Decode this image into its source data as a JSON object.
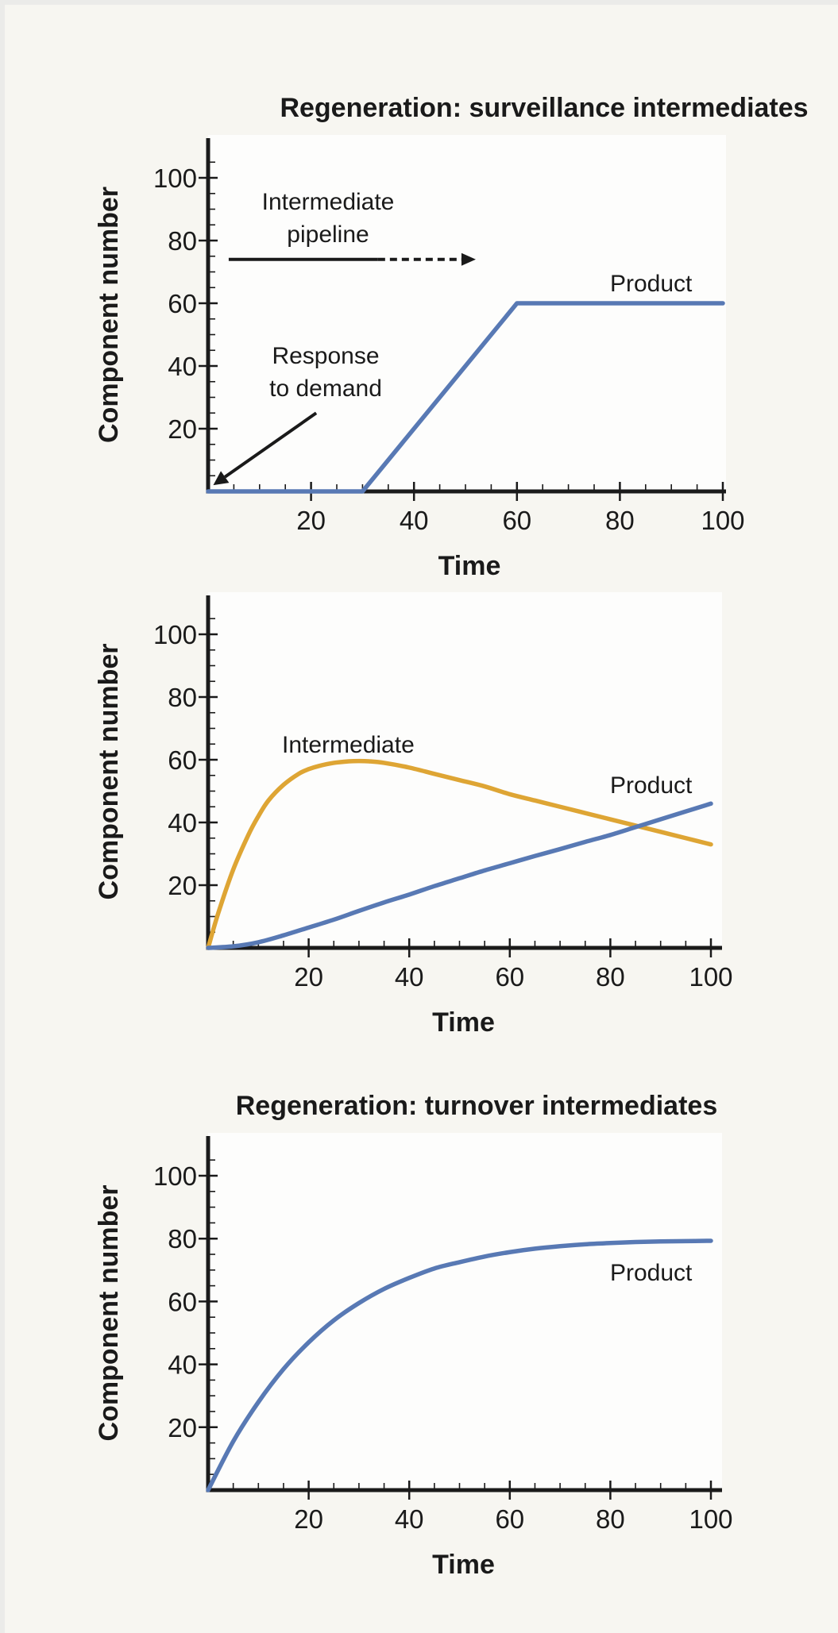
{
  "colors": {
    "product": "#5879b4",
    "intermediate": "#dea534"
  },
  "chart_data": [
    {
      "type": "line",
      "title": "Regeneration: surveillance intermediates",
      "xlabel": "Time",
      "ylabel": "Component number",
      "xlim": [
        0,
        100
      ],
      "ylim": [
        0,
        100
      ],
      "xticks": [
        20,
        40,
        60,
        80,
        100
      ],
      "yticks": [
        20,
        40,
        60,
        80,
        100
      ],
      "series": [
        {
          "name": "Product",
          "color_key": "product",
          "x": [
            0,
            30,
            60,
            100
          ],
          "y": [
            0,
            0,
            60,
            60
          ]
        }
      ],
      "annotations": {
        "pipeline_lines": [
          "Intermediate",
          "pipeline"
        ],
        "pipeline_arrow": {
          "solid_x": [
            4,
            33
          ],
          "dashed_x": [
            33,
            52
          ],
          "y": 74
        },
        "demand_lines": [
          "Response",
          "to demand"
        ],
        "demand_arrow": {
          "from": [
            21,
            25
          ],
          "to": [
            1,
            2
          ]
        }
      }
    },
    {
      "type": "line",
      "title": "",
      "xlabel": "Time",
      "ylabel": "Component number",
      "xlim": [
        0,
        100
      ],
      "ylim": [
        0,
        100
      ],
      "xticks": [
        20,
        40,
        60,
        80,
        100
      ],
      "yticks": [
        20,
        40,
        60,
        80,
        100
      ],
      "series": [
        {
          "name": "Intermediate",
          "color_key": "intermediate",
          "x": [
            0,
            2,
            5,
            8,
            10,
            12,
            15,
            18,
            20,
            22,
            25,
            28,
            30,
            32,
            35,
            40,
            45,
            50,
            55,
            60,
            65,
            70,
            75,
            80,
            85,
            90,
            95,
            100
          ],
          "y": [
            0,
            11,
            25,
            36,
            42,
            47,
            52,
            55.5,
            57,
            58,
            59,
            59.5,
            59.6,
            59.5,
            59,
            57.5,
            55.5,
            53.5,
            51.5,
            49,
            47,
            45,
            43,
            41,
            39,
            37,
            35,
            33
          ]
        },
        {
          "name": "Product",
          "color_key": "product",
          "x": [
            0,
            5,
            10,
            15,
            20,
            25,
            30,
            35,
            40,
            45,
            50,
            55,
            60,
            65,
            70,
            75,
            80,
            85,
            90,
            95,
            100
          ],
          "y": [
            0,
            0.5,
            1.8,
            4,
            6.5,
            9,
            11.8,
            14.5,
            17,
            19.7,
            22.2,
            24.7,
            27,
            29.3,
            31.5,
            33.8,
            36,
            38.5,
            41,
            43.5,
            46
          ]
        }
      ]
    },
    {
      "type": "line",
      "title": "Regeneration: turnover intermediates",
      "xlabel": "Time",
      "ylabel": "Component number",
      "xlim": [
        0,
        100
      ],
      "ylim": [
        0,
        100
      ],
      "xticks": [
        20,
        40,
        60,
        80,
        100
      ],
      "yticks": [
        20,
        40,
        60,
        80,
        100
      ],
      "series": [
        {
          "name": "Product",
          "color_key": "product",
          "x": [
            0,
            5,
            10,
            15,
            20,
            25,
            30,
            35,
            40,
            45,
            50,
            55,
            60,
            65,
            70,
            75,
            80,
            85,
            90,
            95,
            100
          ],
          "y": [
            0,
            15.5,
            28,
            38.5,
            47,
            54,
            59.5,
            64,
            67.5,
            70.5,
            72.5,
            74.3,
            75.7,
            76.8,
            77.6,
            78.2,
            78.6,
            78.9,
            79.1,
            79.2,
            79.3
          ]
        }
      ]
    }
  ]
}
